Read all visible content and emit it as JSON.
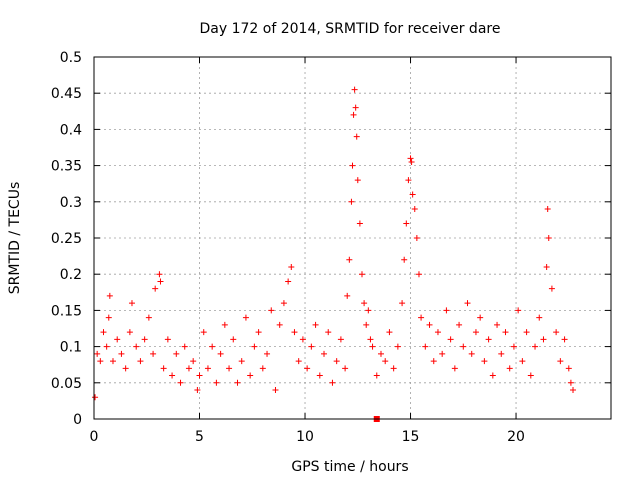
{
  "chart_data": {
    "type": "scatter",
    "title": "Day 172 of 2014, SRMTID for receiver dare",
    "xlabel": "GPS time / hours",
    "ylabel": "SRMTID / TECUs",
    "xlim": [
      0,
      24.5
    ],
    "ylim": [
      0,
      0.5
    ],
    "xticks": [
      0,
      5,
      10,
      15,
      20
    ],
    "xtick_labels": [
      "0",
      "5",
      "10",
      "15",
      "20"
    ],
    "yticks": [
      0,
      0.05,
      0.1,
      0.15,
      0.2,
      0.25,
      0.3,
      0.35,
      0.4,
      0.45,
      0.5
    ],
    "ytick_labels": [
      "0",
      "0.05",
      "0.1",
      "0.15",
      "0.2",
      "0.25",
      "0.3",
      "0.35",
      "0.4",
      "0.45",
      "0.5"
    ],
    "grid": true,
    "marker": "+",
    "marker_color": "#ff0000",
    "series": [
      {
        "name": "SRMTID",
        "x": [
          0.05,
          0.15,
          0.3,
          0.45,
          0.6,
          0.7,
          0.75,
          0.9,
          1.1,
          1.3,
          1.5,
          1.7,
          1.8,
          2.0,
          2.2,
          2.4,
          2.6,
          2.8,
          2.9,
          3.1,
          3.15,
          3.3,
          3.5,
          3.7,
          3.9,
          4.1,
          4.3,
          4.5,
          4.7,
          4.9,
          5.0,
          5.2,
          5.4,
          5.6,
          5.8,
          6.0,
          6.2,
          6.4,
          6.6,
          6.8,
          7.0,
          7.2,
          7.4,
          7.6,
          7.8,
          8.0,
          8.2,
          8.4,
          8.6,
          8.8,
          9.0,
          9.2,
          9.35,
          9.5,
          9.7,
          9.9,
          10.1,
          10.3,
          10.5,
          10.7,
          10.9,
          11.1,
          11.3,
          11.5,
          11.7,
          11.9,
          12.0,
          12.1,
          12.2,
          12.25,
          12.3,
          12.35,
          12.4,
          12.45,
          12.5,
          12.6,
          12.7,
          12.8,
          12.9,
          13.0,
          13.1,
          13.2,
          13.4,
          13.6,
          13.8,
          14.0,
          14.2,
          14.4,
          14.6,
          14.7,
          14.8,
          14.9,
          15.0,
          15.05,
          15.1,
          15.2,
          15.3,
          15.4,
          15.5,
          15.7,
          15.9,
          16.1,
          16.3,
          16.5,
          16.7,
          16.9,
          17.1,
          17.3,
          17.5,
          17.7,
          17.9,
          18.1,
          18.3,
          18.5,
          18.7,
          18.9,
          19.1,
          19.3,
          19.5,
          19.7,
          19.9,
          20.1,
          20.3,
          20.5,
          20.7,
          20.9,
          21.1,
          21.3,
          21.45,
          21.5,
          21.55,
          21.7,
          21.9,
          22.1,
          22.3,
          22.5,
          22.6,
          22.7
        ],
        "y": [
          0.03,
          0.09,
          0.08,
          0.12,
          0.1,
          0.14,
          0.17,
          0.08,
          0.11,
          0.09,
          0.07,
          0.12,
          0.16,
          0.1,
          0.08,
          0.11,
          0.14,
          0.09,
          0.18,
          0.2,
          0.19,
          0.07,
          0.11,
          0.06,
          0.09,
          0.05,
          0.1,
          0.07,
          0.08,
          0.04,
          0.06,
          0.12,
          0.07,
          0.1,
          0.05,
          0.09,
          0.13,
          0.07,
          0.11,
          0.05,
          0.08,
          0.14,
          0.06,
          0.1,
          0.12,
          0.07,
          0.09,
          0.15,
          0.04,
          0.13,
          0.16,
          0.19,
          0.21,
          0.12,
          0.08,
          0.11,
          0.07,
          0.1,
          0.13,
          0.06,
          0.09,
          0.12,
          0.05,
          0.08,
          0.11,
          0.07,
          0.17,
          0.22,
          0.3,
          0.35,
          0.42,
          0.455,
          0.43,
          0.39,
          0.33,
          0.27,
          0.2,
          0.16,
          0.13,
          0.15,
          0.11,
          0.1,
          0.06,
          0.09,
          0.08,
          0.12,
          0.07,
          0.1,
          0.16,
          0.22,
          0.27,
          0.33,
          0.36,
          0.355,
          0.31,
          0.29,
          0.25,
          0.2,
          0.14,
          0.1,
          0.13,
          0.08,
          0.12,
          0.09,
          0.15,
          0.11,
          0.07,
          0.13,
          0.1,
          0.16,
          0.09,
          0.12,
          0.14,
          0.08,
          0.11,
          0.06,
          0.13,
          0.09,
          0.12,
          0.07,
          0.1,
          0.15,
          0.08,
          0.12,
          0.06,
          0.1,
          0.14,
          0.11,
          0.21,
          0.29,
          0.25,
          0.18,
          0.12,
          0.08,
          0.11,
          0.07,
          0.05,
          0.04
        ]
      }
    ],
    "baseline_marker": {
      "x": 13.4,
      "y": 0.0
    }
  }
}
